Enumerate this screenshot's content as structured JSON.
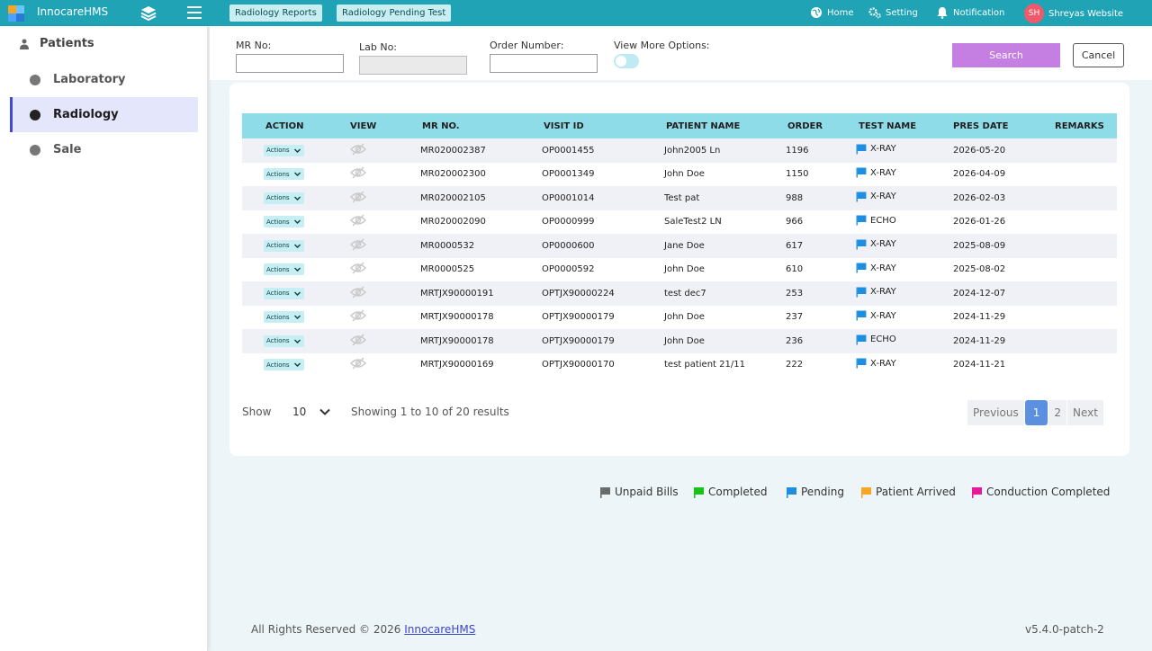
{
  "app": {
    "name": "InnocareHMS"
  },
  "header": {
    "chips": [
      "Radiology Reports",
      "Radiology Pending Test"
    ],
    "nav": {
      "home": "Home",
      "setting": "Setting",
      "notification": "Notification"
    },
    "user": {
      "initials": "SH",
      "name": "Shreyas Website"
    }
  },
  "sidebar": {
    "section": "Patients",
    "items": [
      {
        "label": "Laboratory"
      },
      {
        "label": "Radiology"
      },
      {
        "label": "Sale"
      }
    ]
  },
  "filters": {
    "mr_label": "MR No:",
    "lab_label": "Lab No:",
    "order_label": "Order Number:",
    "more_label": "View More Options:",
    "search_label": "Search",
    "cancel_label": "Cancel"
  },
  "table": {
    "columns": [
      "ACTION",
      "VIEW",
      "MR NO.",
      "VISIT ID",
      "PATIENT NAME",
      "ORDER",
      "TEST NAME",
      "PRES DATE",
      "REMARKS"
    ],
    "action_label": "Actions",
    "rows": [
      {
        "mr": "MR020002387",
        "visit": "OP0001455",
        "patient": "John2005 Ln",
        "order": "1196",
        "test": "X-RAY",
        "date": "2026-05-20"
      },
      {
        "mr": "MR020002300",
        "visit": "OP0001349",
        "patient": "John Doe",
        "order": "1150",
        "test": "X-RAY",
        "date": "2026-04-09"
      },
      {
        "mr": "MR020002105",
        "visit": "OP0001014",
        "patient": "Test pat",
        "order": "988",
        "test": "X-RAY",
        "date": "2026-02-03"
      },
      {
        "mr": "MR020002090",
        "visit": "OP0000999",
        "patient": "SaleTest2 LN",
        "order": "966",
        "test": "ECHO",
        "date": "2026-01-26"
      },
      {
        "mr": "MR0000532",
        "visit": "OP0000600",
        "patient": "Jane Doe",
        "order": "617",
        "test": "X-RAY",
        "date": "2025-08-09"
      },
      {
        "mr": "MR0000525",
        "visit": "OP0000592",
        "patient": "John Doe",
        "order": "610",
        "test": "X-RAY",
        "date": "2025-08-02"
      },
      {
        "mr": "MRTJX90000191",
        "visit": "OPTJX90000224",
        "patient": "test dec7",
        "order": "253",
        "test": "X-RAY",
        "date": "2024-12-07"
      },
      {
        "mr": "MRTJX90000178",
        "visit": "OPTJX90000179",
        "patient": "John Doe",
        "order": "237",
        "test": "X-RAY",
        "date": "2024-11-29"
      },
      {
        "mr": "MRTJX90000178",
        "visit": "OPTJX90000179",
        "patient": "John Doe",
        "order": "236",
        "test": "ECHO",
        "date": "2024-11-29"
      },
      {
        "mr": "MRTJX90000169",
        "visit": "OPTJX90000170",
        "patient": "test patient 21/11",
        "order": "222",
        "test": "X-RAY",
        "date": "2024-11-21"
      }
    ]
  },
  "pagination": {
    "show_label": "Show",
    "page_size": "10",
    "info": "Showing 1 to 10 of 20 results",
    "previous": "Previous",
    "pages": [
      "1",
      "2"
    ],
    "next": "Next"
  },
  "legend": [
    {
      "label": "Unpaid Bills",
      "color": "#6b6b6b"
    },
    {
      "label": "Completed",
      "color": "#19c219"
    },
    {
      "label": "Pending",
      "color": "#1e8fe0"
    },
    {
      "label": "Patient Arrived",
      "color": "#f5a623"
    },
    {
      "label": "Conduction Completed",
      "color": "#e8179b"
    }
  ],
  "colors": {
    "topbar": "#1fa3b5",
    "pending_flag": "#1e8fe0",
    "search_button": "#c57fe3"
  },
  "footer": {
    "rights": "All Rights Reserved © 2026",
    "link": "InnocareHMS",
    "version": "v5.4.0-patch-2"
  }
}
